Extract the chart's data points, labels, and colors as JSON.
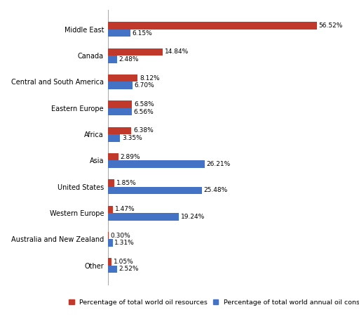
{
  "categories": [
    "Middle East",
    "Canada",
    "Central and South America",
    "Eastern Europe",
    "Africa",
    "Asia",
    "United States",
    "Western Europe",
    "Australia and New Zealand",
    "Other"
  ],
  "resources": [
    56.52,
    14.84,
    8.12,
    6.58,
    6.38,
    2.89,
    1.85,
    1.47,
    0.3,
    1.05
  ],
  "consumption": [
    6.15,
    2.48,
    6.7,
    6.56,
    3.35,
    26.21,
    25.48,
    19.24,
    1.31,
    2.52
  ],
  "resource_color": "#C0392B",
  "consumption_color": "#4472C4",
  "bar_height": 0.28,
  "legend_resource": "Percentage of total world oil resources",
  "legend_consumption": "Percentage of total world annual oil consumption",
  "background_color": "#FFFFFF",
  "label_fontsize": 7.0,
  "value_fontsize": 6.5,
  "legend_fontsize": 6.8,
  "xlim": 65
}
